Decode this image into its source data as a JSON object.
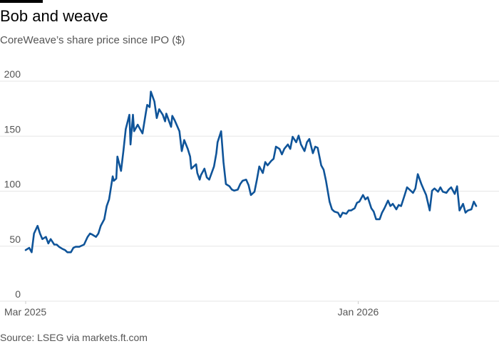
{
  "header": {
    "title": "Bob and weave",
    "subtitle": "CoreWeave’s share price since IPO ($)"
  },
  "footer": {
    "source": "Source: LSEG via markets.ft.com"
  },
  "colors": {
    "line": "#0f5499",
    "grid": "#e6e6e6",
    "text": "#555555",
    "rule": "#000000"
  },
  "chart_data": {
    "type": "line",
    "title": "Bob and weave",
    "subtitle": "CoreWeave’s share price since IPO ($)",
    "xlabel": "",
    "ylabel": "",
    "ylim": [
      0,
      200
    ],
    "y_ticks": [
      0,
      50,
      100,
      150,
      200
    ],
    "x_range": [
      "2025-03-28",
      "2026-04-10"
    ],
    "x_ticks": [
      {
        "date": "2025-03-28",
        "label": "Mar 2025"
      },
      {
        "date": "2026-01-01",
        "label": "Jan 2026"
      }
    ],
    "grid": true,
    "series": [
      {
        "name": "",
        "points": [
          [
            "2025-03-28",
            40
          ],
          [
            "2025-03-31",
            42
          ],
          [
            "2025-04-02",
            38
          ],
          [
            "2025-04-04",
            55
          ],
          [
            "2025-04-07",
            62
          ],
          [
            "2025-04-09",
            55
          ],
          [
            "2025-04-11",
            50
          ],
          [
            "2025-04-14",
            52
          ],
          [
            "2025-04-16",
            46
          ],
          [
            "2025-04-18",
            50
          ],
          [
            "2025-04-21",
            45
          ],
          [
            "2025-04-23",
            45
          ],
          [
            "2025-04-25",
            43
          ],
          [
            "2025-04-28",
            41
          ],
          [
            "2025-04-30",
            40
          ],
          [
            "2025-05-02",
            38
          ],
          [
            "2025-05-05",
            38
          ],
          [
            "2025-05-07",
            42
          ],
          [
            "2025-05-09",
            43
          ],
          [
            "2025-05-12",
            43
          ],
          [
            "2025-05-14",
            44
          ],
          [
            "2025-05-16",
            45
          ],
          [
            "2025-05-19",
            52
          ],
          [
            "2025-05-21",
            55
          ],
          [
            "2025-05-23",
            54
          ],
          [
            "2025-05-26",
            52
          ],
          [
            "2025-05-28",
            55
          ],
          [
            "2025-05-30",
            62
          ],
          [
            "2025-06-02",
            68
          ],
          [
            "2025-06-04",
            80
          ],
          [
            "2025-06-06",
            86
          ],
          [
            "2025-06-09",
            107
          ],
          [
            "2025-06-10",
            103
          ],
          [
            "2025-06-12",
            105
          ],
          [
            "2025-06-13",
            125
          ],
          [
            "2025-06-16",
            112
          ],
          [
            "2025-06-18",
            130
          ],
          [
            "2025-06-20",
            150
          ],
          [
            "2025-06-23",
            163
          ],
          [
            "2025-06-24",
            136
          ],
          [
            "2025-06-26",
            163
          ],
          [
            "2025-06-27",
            148
          ],
          [
            "2025-06-30",
            154
          ],
          [
            "2025-07-02",
            150
          ],
          [
            "2025-07-04",
            146
          ],
          [
            "2025-07-07",
            166
          ],
          [
            "2025-07-08",
            172
          ],
          [
            "2025-07-10",
            170
          ],
          [
            "2025-07-11",
            184
          ],
          [
            "2025-07-14",
            175
          ],
          [
            "2025-07-16",
            160
          ],
          [
            "2025-07-18",
            168
          ],
          [
            "2025-07-21",
            163
          ],
          [
            "2025-07-23",
            157
          ],
          [
            "2025-07-24",
            164
          ],
          [
            "2025-07-28",
            152
          ],
          [
            "2025-07-29",
            162
          ],
          [
            "2025-07-31",
            158
          ],
          [
            "2025-08-04",
            148
          ],
          [
            "2025-08-06",
            130
          ],
          [
            "2025-08-08",
            140
          ],
          [
            "2025-08-11",
            132
          ],
          [
            "2025-08-13",
            125
          ],
          [
            "2025-08-14",
            114
          ],
          [
            "2025-08-18",
            118
          ],
          [
            "2025-08-19",
            110
          ],
          [
            "2025-08-21",
            104
          ],
          [
            "2025-08-22",
            108
          ],
          [
            "2025-08-25",
            114
          ],
          [
            "2025-08-27",
            106
          ],
          [
            "2025-08-29",
            104
          ],
          [
            "2025-09-02",
            116
          ],
          [
            "2025-09-04",
            128
          ],
          [
            "2025-09-05",
            138
          ],
          [
            "2025-09-08",
            148
          ],
          [
            "2025-09-10",
            120
          ],
          [
            "2025-09-12",
            100
          ],
          [
            "2025-09-15",
            98
          ],
          [
            "2025-09-17",
            95
          ],
          [
            "2025-09-19",
            94
          ],
          [
            "2025-09-22",
            95
          ],
          [
            "2025-09-24",
            100
          ],
          [
            "2025-09-26",
            103
          ],
          [
            "2025-09-29",
            104
          ],
          [
            "2025-10-01",
            99
          ],
          [
            "2025-10-03",
            90
          ],
          [
            "2025-10-06",
            93
          ],
          [
            "2025-10-08",
            104
          ],
          [
            "2025-10-10",
            116
          ],
          [
            "2025-10-13",
            110
          ],
          [
            "2025-10-15",
            120
          ],
          [
            "2025-10-17",
            117
          ],
          [
            "2025-10-20",
            121
          ],
          [
            "2025-10-22",
            123
          ],
          [
            "2025-10-24",
            134
          ],
          [
            "2025-10-27",
            132
          ],
          [
            "2025-10-29",
            127
          ],
          [
            "2025-10-31",
            132
          ],
          [
            "2025-11-03",
            136
          ],
          [
            "2025-11-05",
            132
          ],
          [
            "2025-11-07",
            143
          ],
          [
            "2025-11-10",
            138
          ],
          [
            "2025-11-12",
            144
          ],
          [
            "2025-11-14",
            136
          ],
          [
            "2025-11-17",
            130
          ],
          [
            "2025-11-19",
            138
          ],
          [
            "2025-11-21",
            141
          ],
          [
            "2025-11-24",
            128
          ],
          [
            "2025-11-26",
            134
          ],
          [
            "2025-11-28",
            133
          ],
          [
            "2025-12-01",
            117
          ],
          [
            "2025-12-03",
            113
          ],
          [
            "2025-12-05",
            103
          ],
          [
            "2025-12-08",
            84
          ],
          [
            "2025-12-10",
            77
          ],
          [
            "2025-12-12",
            75
          ],
          [
            "2025-12-15",
            74
          ],
          [
            "2025-12-17",
            70
          ],
          [
            "2025-12-19",
            74
          ],
          [
            "2025-12-22",
            73
          ],
          [
            "2025-12-24",
            76
          ],
          [
            "2025-12-26",
            76
          ],
          [
            "2025-12-29",
            78
          ],
          [
            "2025-12-31",
            83
          ],
          [
            "2026-01-02",
            84
          ],
          [
            "2026-01-05",
            90
          ],
          [
            "2026-01-07",
            86
          ],
          [
            "2026-01-09",
            88
          ],
          [
            "2026-01-12",
            78
          ],
          [
            "2026-01-14",
            75
          ],
          [
            "2026-01-16",
            68
          ],
          [
            "2026-01-19",
            68
          ],
          [
            "2026-01-21",
            74
          ],
          [
            "2026-01-23",
            78
          ],
          [
            "2026-01-26",
            85
          ],
          [
            "2026-01-28",
            80
          ],
          [
            "2026-01-30",
            82
          ],
          [
            "2026-02-02",
            77
          ],
          [
            "2026-02-04",
            81
          ],
          [
            "2026-02-06",
            80
          ],
          [
            "2026-02-09",
            90
          ],
          [
            "2026-02-11",
            97
          ],
          [
            "2026-02-13",
            95
          ],
          [
            "2026-02-16",
            92
          ],
          [
            "2026-02-18",
            96
          ],
          [
            "2026-02-20",
            109
          ],
          [
            "2026-02-23",
            100
          ],
          [
            "2026-02-25",
            95
          ],
          [
            "2026-02-27",
            90
          ],
          [
            "2026-03-02",
            76
          ],
          [
            "2026-03-04",
            94
          ],
          [
            "2026-03-06",
            96
          ],
          [
            "2026-03-09",
            93
          ],
          [
            "2026-03-11",
            97
          ],
          [
            "2026-03-13",
            93
          ],
          [
            "2026-03-16",
            92
          ],
          [
            "2026-03-18",
            95
          ],
          [
            "2026-03-20",
            97
          ],
          [
            "2026-03-23",
            91
          ],
          [
            "2026-03-25",
            98
          ],
          [
            "2026-03-27",
            76
          ],
          [
            "2026-03-30",
            82
          ],
          [
            "2026-04-01",
            74
          ],
          [
            "2026-04-03",
            76
          ],
          [
            "2026-04-06",
            77
          ],
          [
            "2026-04-08",
            84
          ],
          [
            "2026-04-10",
            80
          ]
        ]
      }
    ]
  }
}
